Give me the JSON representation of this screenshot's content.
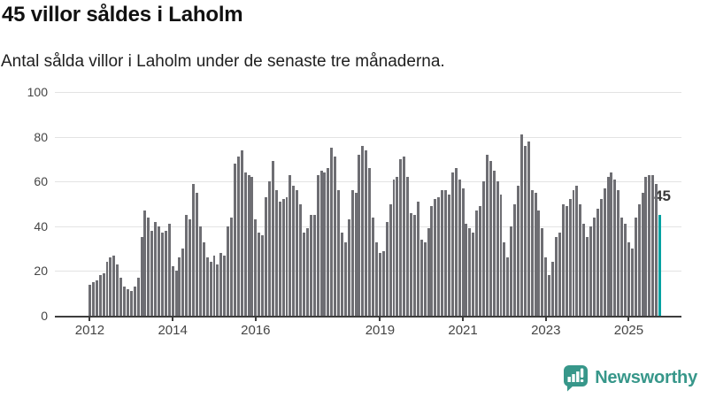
{
  "header": {
    "title": "45 villor såldes i Laholm",
    "subtitle": "Antal sålda villor i Laholm under de senaste tre månaderna."
  },
  "annotation": {
    "label": "45"
  },
  "footer": {
    "brand": "Newsworthy",
    "logo_icon": "speech-bubble-bar-chart-icon"
  },
  "colors": {
    "bar": "#6e6e73",
    "highlight": "#00a2a2",
    "brand": "#37978a",
    "gridline": "#e3e3e3",
    "axis": "#3d3d3d"
  },
  "chart_data": {
    "type": "bar",
    "title": "45 villor såldes i Laholm",
    "subtitle": "Antal sålda villor i Laholm under de senaste tre månaderna.",
    "frequency": "monthly",
    "series_start": "2012-01",
    "series_end": "2025-10",
    "ylim": [
      0,
      100
    ],
    "grid": true,
    "y_ticks": [
      0,
      20,
      40,
      60,
      80,
      100
    ],
    "x_ticks": [
      {
        "label": "2012",
        "month_index": 0
      },
      {
        "label": "2014",
        "month_index": 24
      },
      {
        "label": "2016",
        "month_index": 48
      },
      {
        "label": "2019",
        "month_index": 84
      },
      {
        "label": "2021",
        "month_index": 108
      },
      {
        "label": "2023",
        "month_index": 132
      },
      {
        "label": "2025",
        "month_index": 156
      }
    ],
    "highlight_last_bar": true,
    "last_value_label": "45",
    "values": [
      14,
      15,
      16,
      18,
      19,
      24,
      26,
      27,
      23,
      17,
      13,
      12,
      11,
      13,
      17,
      35,
      47,
      44,
      38,
      42,
      40,
      37,
      38,
      41,
      22,
      20,
      26,
      30,
      45,
      43,
      59,
      55,
      40,
      33,
      26,
      24,
      27,
      23,
      28,
      27,
      40,
      44,
      68,
      71,
      74,
      64,
      63,
      62,
      43,
      37,
      36,
      53,
      60,
      69,
      56,
      51,
      52,
      53,
      63,
      58,
      56,
      50,
      37,
      39,
      45,
      45,
      63,
      65,
      64,
      66,
      75,
      71,
      56,
      37,
      33,
      43,
      56,
      55,
      72,
      76,
      74,
      66,
      44,
      33,
      28,
      29,
      42,
      50,
      61,
      62,
      70,
      71,
      62,
      46,
      45,
      51,
      34,
      33,
      39,
      49,
      52,
      53,
      56,
      56,
      54,
      64,
      66,
      61,
      57,
      41,
      39,
      37,
      47,
      49,
      60,
      72,
      69,
      65,
      60,
      54,
      33,
      26,
      40,
      50,
      58,
      81,
      76,
      78,
      56,
      55,
      47,
      39,
      26,
      18,
      24,
      35,
      37,
      50,
      49,
      52,
      56,
      58,
      50,
      41,
      35,
      40,
      44,
      48,
      52,
      57,
      62,
      64,
      61,
      56,
      44,
      41,
      33,
      30,
      44,
      50,
      55,
      62,
      63,
      63,
      59,
      45
    ]
  }
}
